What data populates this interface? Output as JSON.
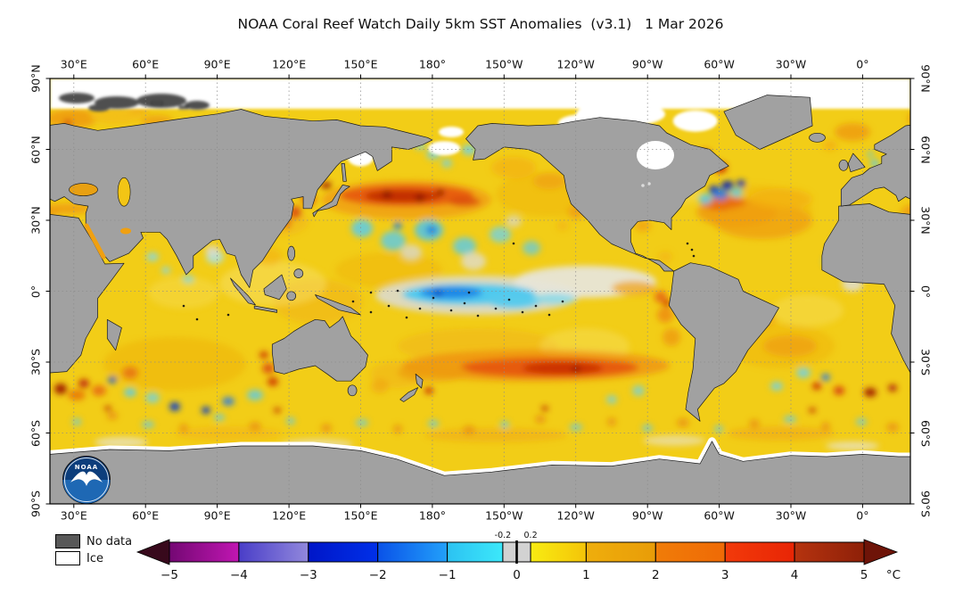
{
  "title": "NOAA Coral Reef Watch Daily 5km SST Anomalies  (v3.1)   1 Mar 2026",
  "axes": {
    "lon_labels": [
      "30°E",
      "60°E",
      "90°E",
      "120°E",
      "150°E",
      "180°",
      "150°W",
      "120°W",
      "90°W",
      "60°W",
      "30°W",
      "0°"
    ],
    "lat_labels": [
      "90°N",
      "60°N",
      "30°N",
      "0°",
      "30°S",
      "60°S",
      "90°S"
    ]
  },
  "legend": {
    "items": [
      {
        "label": "No data",
        "color": "#585858"
      },
      {
        "label": "Ice",
        "color": "#ffffff"
      }
    ]
  },
  "colorbar": {
    "unit": "°C",
    "min": -5,
    "max": 5,
    "tick_labels": [
      "−5",
      "−4",
      "−3",
      "−2",
      "−1",
      "0",
      "1",
      "2",
      "3",
      "4",
      "5"
    ],
    "inner_tick_labels": [
      "-0.2",
      "0.2"
    ],
    "inner_tick_values": [
      -0.2,
      0.2
    ],
    "zero_line": true,
    "segments": [
      {
        "from": -5,
        "to": -4,
        "c1": "#740873",
        "c2": "#c016b2"
      },
      {
        "from": -4,
        "to": -3,
        "c1": "#4a3ec8",
        "c2": "#9188dc"
      },
      {
        "from": -3,
        "to": -2,
        "c1": "#0016c8",
        "c2": "#0030e8"
      },
      {
        "from": -2,
        "to": -1,
        "c1": "#0a52e8",
        "c2": "#22a0fa"
      },
      {
        "from": -1,
        "to": -0.2,
        "c1": "#2cc2f2",
        "c2": "#3ce8fa"
      },
      {
        "from": -0.2,
        "to": 0.2,
        "c1": "#d2d2d2",
        "c2": "#d2d2d2"
      },
      {
        "from": 0.2,
        "to": 1,
        "c1": "#f8ec12",
        "c2": "#f4c408"
      },
      {
        "from": 1,
        "to": 2,
        "c1": "#efae0c",
        "c2": "#e89c08"
      },
      {
        "from": 2,
        "to": 3,
        "c1": "#f07c08",
        "c2": "#ef6a06"
      },
      {
        "from": 3,
        "to": 4,
        "c1": "#f23a0a",
        "c2": "#e82505"
      },
      {
        "from": 4,
        "to": 5,
        "c1": "#b5330f",
        "c2": "#8e2008"
      }
    ],
    "left_arrow_color": "#38091c",
    "right_arrow_color": "#6e1408"
  },
  "logo": {
    "text": "NOAA"
  },
  "map_colors": {
    "ocean_base": "#f2cd17",
    "land": "#a1a1a1",
    "ice": "#ffffff",
    "no_data": "#4f4f4f",
    "grid": "#8c8c8c",
    "coastline": "#1a1a1a"
  }
}
